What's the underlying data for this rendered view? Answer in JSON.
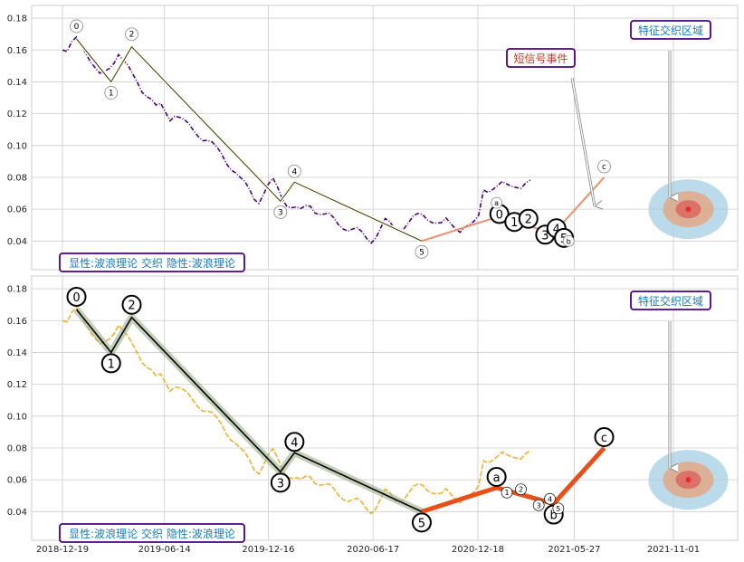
{
  "colors": {
    "panel_bg": "#ffffff",
    "grid": "#cccccc",
    "top_price": "#4b0082",
    "bottom_price": "#f0b030",
    "wave_black": "#000000",
    "wave_orange": "#e8501a",
    "wave_highlight": "#9db08a",
    "label_box_border": "#4b0082",
    "label_text_blue": "#1a7abf",
    "label_text_red": "#c0392b",
    "zone_outer": "#9ecae1",
    "zone_mid": "#e7a17a",
    "zone_inner": "#d94a4a"
  },
  "chart_data": [
    {
      "type": "line",
      "panel": "top",
      "ylim": [
        0.022,
        0.188
      ],
      "yticks": [
        "0.04",
        "0.06",
        "0.08",
        "0.10",
        "0.12",
        "0.14",
        "0.16",
        "0.18"
      ],
      "ytick_values": [
        0.04,
        0.06,
        0.08,
        0.1,
        0.12,
        0.14,
        0.16,
        0.18
      ],
      "price_series": [
        [
          0,
          0.16
        ],
        [
          5,
          0.157
        ],
        [
          10,
          0.163
        ],
        [
          15,
          0.168
        ],
        [
          20,
          0.165
        ],
        [
          25,
          0.16
        ],
        [
          30,
          0.153
        ],
        [
          35,
          0.147
        ],
        [
          40,
          0.143
        ],
        [
          45,
          0.146
        ],
        [
          50,
          0.15
        ],
        [
          55,
          0.154
        ],
        [
          60,
          0.158
        ],
        [
          65,
          0.152
        ],
        [
          70,
          0.148
        ],
        [
          75,
          0.144
        ],
        [
          80,
          0.141
        ],
        [
          85,
          0.136
        ],
        [
          90,
          0.132
        ],
        [
          95,
          0.128
        ],
        [
          100,
          0.123
        ],
        [
          105,
          0.125
        ],
        [
          110,
          0.122
        ],
        [
          115,
          0.118
        ],
        [
          120,
          0.12
        ],
        [
          125,
          0.117
        ],
        [
          130,
          0.114
        ],
        [
          135,
          0.112
        ],
        [
          140,
          0.11
        ],
        [
          145,
          0.108
        ],
        [
          150,
          0.105
        ],
        [
          155,
          0.103
        ],
        [
          160,
          0.1
        ],
        [
          165,
          0.097
        ],
        [
          170,
          0.095
        ],
        [
          175,
          0.091
        ],
        [
          180,
          0.087
        ],
        [
          185,
          0.083
        ],
        [
          190,
          0.078
        ],
        [
          195,
          0.075
        ],
        [
          200,
          0.072
        ],
        [
          205,
          0.068
        ],
        [
          210,
          0.066
        ],
        [
          215,
          0.07
        ],
        [
          220,
          0.074
        ],
        [
          225,
          0.077
        ],
        [
          230,
          0.073
        ],
        [
          235,
          0.068
        ],
        [
          240,
          0.064
        ],
        [
          245,
          0.062
        ],
        [
          250,
          0.06
        ],
        [
          255,
          0.058
        ],
        [
          260,
          0.061
        ],
        [
          265,
          0.063
        ],
        [
          270,
          0.06
        ],
        [
          275,
          0.058
        ],
        [
          280,
          0.056
        ],
        [
          285,
          0.055
        ],
        [
          290,
          0.053
        ],
        [
          295,
          0.051
        ],
        [
          300,
          0.05
        ],
        [
          305,
          0.048
        ],
        [
          310,
          0.047
        ],
        [
          315,
          0.046
        ],
        [
          320,
          0.044
        ],
        [
          325,
          0.042
        ],
        [
          330,
          0.041
        ],
        [
          335,
          0.044
        ],
        [
          340,
          0.048
        ],
        [
          345,
          0.052
        ],
        [
          350,
          0.05
        ],
        [
          355,
          0.047
        ],
        [
          360,
          0.048
        ],
        [
          365,
          0.05
        ],
        [
          370,
          0.052
        ],
        [
          375,
          0.054
        ],
        [
          380,
          0.055
        ],
        [
          385,
          0.056
        ],
        [
          390,
          0.055
        ],
        [
          395,
          0.054
        ],
        [
          400,
          0.052
        ],
        [
          405,
          0.05
        ],
        [
          410,
          0.052
        ],
        [
          415,
          0.05
        ],
        [
          420,
          0.049
        ],
        [
          425,
          0.048
        ],
        [
          430,
          0.05
        ],
        [
          435,
          0.049
        ],
        [
          440,
          0.05
        ],
        [
          445,
          0.055
        ],
        [
          450,
          0.073
        ],
        [
          455,
          0.073
        ],
        [
          460,
          0.074
        ],
        [
          465,
          0.074
        ],
        [
          470,
          0.075
        ],
        [
          475,
          0.074
        ],
        [
          480,
          0.075
        ],
        [
          485,
          0.076
        ],
        [
          490,
          0.075
        ],
        [
          495,
          0.076
        ],
        [
          500,
          0.076
        ]
      ],
      "wave_points": [
        {
          "label": "0",
          "x": 15,
          "y": 0.167
        },
        {
          "label": "1",
          "x": 52,
          "y": 0.14
        },
        {
          "label": "2",
          "x": 74,
          "y": 0.162
        },
        {
          "label": "3",
          "x": 233,
          "y": 0.065
        },
        {
          "label": "4",
          "x": 248,
          "y": 0.077
        },
        {
          "label": "5",
          "x": 384,
          "y": 0.04
        },
        {
          "label": "c",
          "x": 579,
          "y": 0.08
        }
      ],
      "orange_segment": [
        [
          384,
          0.04
        ],
        [
          464,
          0.055
        ],
        [
          525,
          0.045
        ],
        [
          579,
          0.08
        ]
      ],
      "small_waves": [
        {
          "label": "0",
          "x": 467,
          "y": 0.057
        },
        {
          "label": "1",
          "x": 483,
          "y": 0.052
        },
        {
          "label": "2",
          "x": 498,
          "y": 0.054
        },
        {
          "label": "3",
          "x": 516,
          "y": 0.044
        },
        {
          "label": "4",
          "x": 528,
          "y": 0.048
        },
        {
          "label": "5",
          "x": 536,
          "y": 0.042
        }
      ],
      "extra_circles": [
        {
          "label": "a",
          "x": 464,
          "y": 0.064
        },
        {
          "label": "b",
          "x": 541,
          "y": 0.04
        }
      ],
      "events": [
        {
          "text": "短信号事件",
          "color_key": "label_text_red"
        },
        {
          "text": "特征交织区域",
          "color_key": "label_text_blue"
        }
      ],
      "zone_center": [
        548,
        0.06
      ],
      "bottom_label": "显性:波浪理论 交织 隐性:波浪理论",
      "grid": true
    },
    {
      "type": "line",
      "panel": "bottom",
      "ylim": [
        0.022,
        0.188
      ],
      "yticks": [
        "0.04",
        "0.06",
        "0.08",
        "0.10",
        "0.12",
        "0.14",
        "0.16",
        "0.18"
      ],
      "ytick_values": [
        0.04,
        0.06,
        0.08,
        0.1,
        0.12,
        0.14,
        0.16,
        0.18
      ],
      "xticks": [
        "2018-12-19",
        "2019-06-14",
        "2019-12-16",
        "2020-06-17",
        "2020-12-18",
        "2021-05-27",
        "2021-11-01"
      ],
      "xtick_positions": [
        0,
        109,
        220,
        332,
        444,
        547,
        653
      ],
      "wave_points": [
        {
          "label": "0",
          "x": 15,
          "y": 0.167
        },
        {
          "label": "1",
          "x": 52,
          "y": 0.14
        },
        {
          "label": "2",
          "x": 74,
          "y": 0.162
        },
        {
          "label": "3",
          "x": 233,
          "y": 0.065
        },
        {
          "label": "4",
          "x": 248,
          "y": 0.077
        },
        {
          "label": "5",
          "x": 384,
          "y": 0.04
        },
        {
          "label": "a",
          "x": 464,
          "y": 0.055
        },
        {
          "label": "b",
          "x": 525,
          "y": 0.045
        },
        {
          "label": "c",
          "x": 579,
          "y": 0.08
        }
      ],
      "small_waves": [
        {
          "label": "1",
          "x": 475,
          "y": 0.052
        },
        {
          "label": "2",
          "x": 490,
          "y": 0.054
        },
        {
          "label": "3",
          "x": 509,
          "y": 0.044
        },
        {
          "label": "4",
          "x": 521,
          "y": 0.048
        },
        {
          "label": "5",
          "x": 530,
          "y": 0.042
        }
      ],
      "events": [
        {
          "text": "特征交织区域",
          "color_key": "label_text_blue"
        }
      ],
      "zone_center": [
        548,
        0.06
      ],
      "bottom_label": "显性:波浪理论 交织 隐性:波浪理论",
      "grid": true
    }
  ]
}
